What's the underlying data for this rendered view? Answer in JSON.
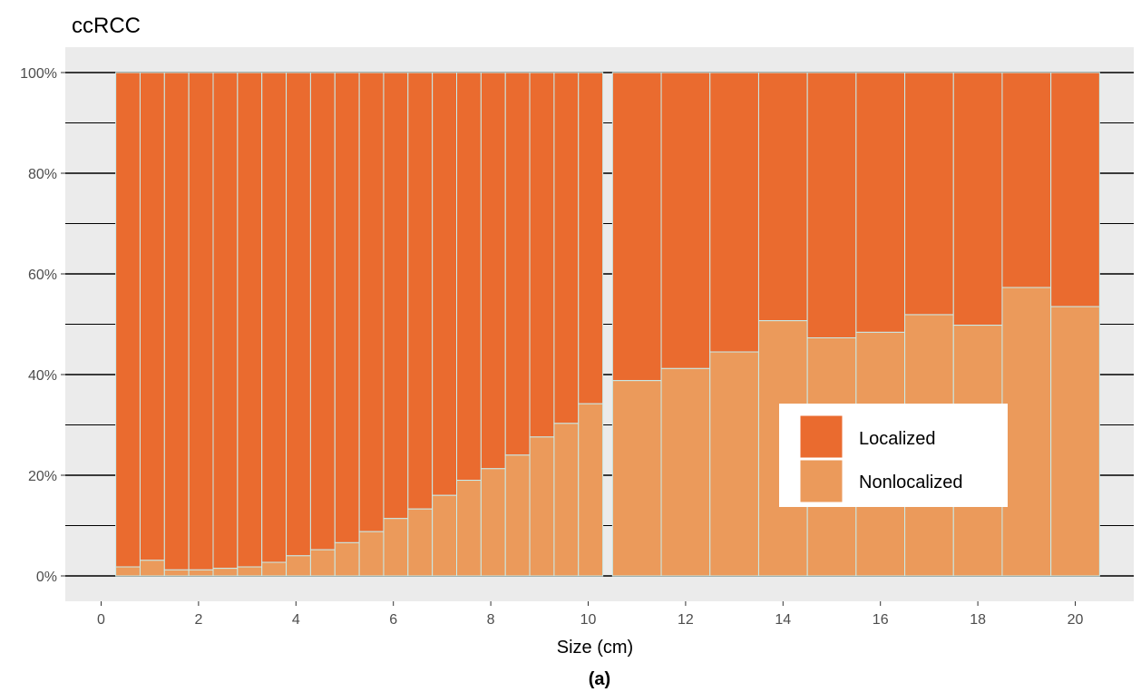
{
  "chart_data": {
    "type": "bar",
    "stacked": true,
    "normalized": true,
    "title": "ccRCC",
    "xlabel": "Size (cm)",
    "ylabel": "",
    "caption": "(a)",
    "xlim": [
      -0.5,
      21
    ],
    "ylim": [
      0,
      100
    ],
    "x_ticks": [
      0,
      2,
      4,
      6,
      8,
      10,
      12,
      14,
      16,
      18,
      20
    ],
    "y_ticks": [
      0,
      20,
      40,
      60,
      80,
      100
    ],
    "y_tick_labels": [
      "0%",
      "20%",
      "40%",
      "60%",
      "80%",
      "100%"
    ],
    "x_tick_labels": [
      "0",
      "2",
      "4",
      "6",
      "8",
      "10",
      "12",
      "14",
      "16",
      "18",
      "20"
    ],
    "grid": true,
    "legend_position": "inside-bottom-right",
    "bars": [
      {
        "x0": 0.3,
        "x1": 0.8,
        "nonlocalized": 1.8
      },
      {
        "x0": 0.8,
        "x1": 1.3,
        "nonlocalized": 3.1
      },
      {
        "x0": 1.3,
        "x1": 1.8,
        "nonlocalized": 1.2
      },
      {
        "x0": 1.8,
        "x1": 2.3,
        "nonlocalized": 1.2
      },
      {
        "x0": 2.3,
        "x1": 2.8,
        "nonlocalized": 1.5
      },
      {
        "x0": 2.8,
        "x1": 3.3,
        "nonlocalized": 1.8
      },
      {
        "x0": 3.3,
        "x1": 3.8,
        "nonlocalized": 2.7
      },
      {
        "x0": 3.8,
        "x1": 4.3,
        "nonlocalized": 4.0
      },
      {
        "x0": 4.3,
        "x1": 4.8,
        "nonlocalized": 5.2
      },
      {
        "x0": 4.8,
        "x1": 5.3,
        "nonlocalized": 6.6
      },
      {
        "x0": 5.3,
        "x1": 5.8,
        "nonlocalized": 8.8
      },
      {
        "x0": 5.8,
        "x1": 6.3,
        "nonlocalized": 11.4
      },
      {
        "x0": 6.3,
        "x1": 6.8,
        "nonlocalized": 13.3
      },
      {
        "x0": 6.8,
        "x1": 7.3,
        "nonlocalized": 16.0
      },
      {
        "x0": 7.3,
        "x1": 7.8,
        "nonlocalized": 19.0
      },
      {
        "x0": 7.8,
        "x1": 8.3,
        "nonlocalized": 21.3
      },
      {
        "x0": 8.3,
        "x1": 8.8,
        "nonlocalized": 24.0
      },
      {
        "x0": 8.8,
        "x1": 9.3,
        "nonlocalized": 27.6
      },
      {
        "x0": 9.3,
        "x1": 9.8,
        "nonlocalized": 30.3
      },
      {
        "x0": 9.8,
        "x1": 10.3,
        "nonlocalized": 34.2
      },
      {
        "x0": 10.5,
        "x1": 11.5,
        "nonlocalized": 38.8
      },
      {
        "x0": 11.5,
        "x1": 12.5,
        "nonlocalized": 41.2
      },
      {
        "x0": 12.5,
        "x1": 13.5,
        "nonlocalized": 44.5
      },
      {
        "x0": 13.5,
        "x1": 14.5,
        "nonlocalized": 50.7
      },
      {
        "x0": 14.5,
        "x1": 15.5,
        "nonlocalized": 47.3
      },
      {
        "x0": 15.5,
        "x1": 16.5,
        "nonlocalized": 48.4
      },
      {
        "x0": 16.5,
        "x1": 17.5,
        "nonlocalized": 51.9
      },
      {
        "x0": 17.5,
        "x1": 18.5,
        "nonlocalized": 49.8
      },
      {
        "x0": 18.5,
        "x1": 19.5,
        "nonlocalized": 57.3
      },
      {
        "x0": 19.5,
        "x1": 20.5,
        "nonlocalized": 53.5
      }
    ],
    "series": [
      {
        "name": "Localized",
        "color": "#ea6b2f"
      },
      {
        "name": "Nonlocalized",
        "color": "#eb9a5b"
      }
    ],
    "colors": {
      "panel_background": "#ebebeb",
      "gridline": "#000000",
      "bar_outline": "#c8eceb"
    }
  }
}
